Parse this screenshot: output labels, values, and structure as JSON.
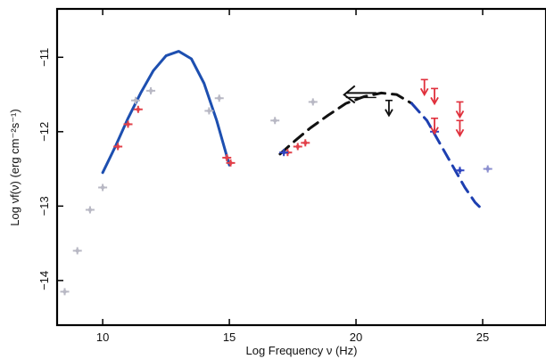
{
  "chart_data": {
    "type": "scatter",
    "title": "",
    "xlabel": "Log Frequency ν (Hz)",
    "ylabel": "Log νf(ν) (erg cm⁻²s⁻¹)",
    "xlim": [
      8.2,
      27.5
    ],
    "ylim": [
      -14.6,
      -10.35
    ],
    "x_ticks": [
      10,
      15,
      20,
      25
    ],
    "y_ticks": [
      -11,
      -12,
      -13,
      -14
    ],
    "grid": false,
    "legend": "none",
    "series": [
      {
        "kind": "line",
        "style": "solid",
        "color": "#1d4fb0",
        "x": [
          10.0,
          10.5,
          11.0,
          11.5,
          12.0,
          12.5,
          13.0,
          13.5,
          14.0,
          14.5,
          15.0
        ],
        "y": [
          -12.55,
          -12.2,
          -11.82,
          -11.48,
          -11.18,
          -10.98,
          -10.92,
          -11.02,
          -11.35,
          -11.85,
          -12.45
        ]
      },
      {
        "kind": "line",
        "style": "dashed",
        "color": "#111111",
        "x": [
          17.0,
          17.6,
          18.2,
          18.9,
          19.6,
          20.3,
          21.0,
          21.6,
          22.2
        ],
        "y": [
          -12.3,
          -12.12,
          -11.95,
          -11.78,
          -11.62,
          -11.53,
          -11.48,
          -11.5,
          -11.62
        ]
      },
      {
        "kind": "line",
        "style": "dashed",
        "color": "#1d3fb0",
        "x": [
          22.2,
          22.8,
          23.3,
          23.8,
          24.3,
          24.7,
          25.0
        ],
        "y": [
          -11.62,
          -11.85,
          -12.15,
          -12.45,
          -12.75,
          -12.95,
          -13.05
        ]
      },
      {
        "kind": "scatter",
        "color": "#e2414a",
        "x": [
          10.6,
          11.0,
          11.4,
          14.9,
          15.05,
          17.3,
          17.7,
          18.0
        ],
        "y": [
          -12.2,
          -11.9,
          -11.7,
          -12.35,
          -12.42,
          -12.28,
          -12.2,
          -12.15
        ]
      },
      {
        "kind": "scatter",
        "color": "#b8b8c4",
        "x": [
          8.5,
          9.0,
          9.5,
          10.0,
          11.3,
          11.9,
          14.2,
          14.6,
          16.8,
          18.3
        ],
        "y": [
          -14.15,
          -13.6,
          -13.05,
          -12.75,
          -11.58,
          -11.45,
          -11.72,
          -11.55,
          -11.85,
          -11.6
        ]
      },
      {
        "kind": "scatter",
        "color": "#2f45c0",
        "x": [
          17.15,
          23.1,
          24.1
        ],
        "y": [
          -12.28,
          -12.0,
          -12.52
        ]
      },
      {
        "kind": "scatter",
        "color": "#8b8fcf",
        "x": [
          25.2
        ],
        "y": [
          -12.5
        ]
      },
      {
        "kind": "upper_limit",
        "color": "#e0303c",
        "x": [
          22.7,
          23.1,
          23.1,
          24.1,
          24.1
        ],
        "y": [
          -11.3,
          -11.42,
          -11.82,
          -11.6,
          -11.85
        ]
      },
      {
        "kind": "upper_limit",
        "color": "#111111",
        "x": [
          21.3
        ],
        "y": [
          -11.58
        ]
      },
      {
        "kind": "lower_limit_arrow",
        "color": "#111111",
        "x": [
          20.8
        ],
        "y": [
          -11.48
        ]
      }
    ]
  }
}
